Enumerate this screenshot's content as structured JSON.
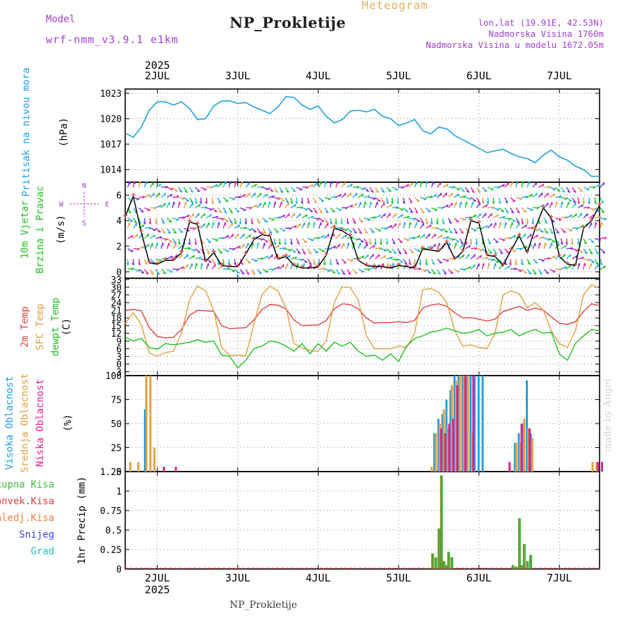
{
  "header": {
    "model_label": "Model",
    "model_name": "wrf-nmm_v3.9.1 e1km",
    "title": "NP_Prokletije",
    "meteogram_label": "Meteogram",
    "location_lines": [
      "lon,lat (19.91E, 42.53N)",
      "Nadmorska Visina 1760m",
      "Nadmorska Visina u modelu 1672.05m"
    ]
  },
  "footer": {
    "station_name": "NP_Prokletije",
    "credit": "made by Angel"
  },
  "colors": {
    "pressure": "#20a0e0",
    "temp2m": "#e04040",
    "sfc_temp": "#e0a040",
    "dewpoint": "#20c020",
    "wind_speed": "#000000",
    "gust_marker": "#e04040",
    "high_cloud": "#20a0e0",
    "mid_cloud": "#e0a040",
    "low_cloud": "#e02090",
    "total_rain": "#40c040",
    "conv_rain": "#e04040",
    "freezing_rain": "#f08040",
    "snow": "#4040e0",
    "hail": "#20c0c0",
    "purple_text": "#a040d0"
  },
  "chart_data": [
    {
      "type": "line",
      "id": "pressure",
      "ylabel": [
        "Pritisak na nivou mora",
        "(hPa)"
      ],
      "ylim": [
        1012.5,
        1023.5
      ],
      "yticks": [
        1014,
        1017,
        1020,
        1023
      ],
      "x_start_day": 1.6,
      "x_end_day": 7.5,
      "day_ticks": [
        {
          "day": 2,
          "label": "2JUL"
        },
        {
          "day": 3,
          "label": "3JUL"
        },
        {
          "day": 4,
          "label": "4JUL"
        },
        {
          "day": 5,
          "label": "5JUL"
        },
        {
          "day": 6,
          "label": "6JUL"
        },
        {
          "day": 7,
          "label": "7JUL"
        }
      ],
      "year_label": "2025",
      "series": [
        {
          "x": [
            1.6,
            1.7,
            1.8,
            1.9,
            2.0,
            2.1,
            2.2,
            2.3,
            2.4,
            2.5,
            2.6,
            2.7,
            2.8,
            2.9,
            3.0,
            3.1,
            3.2,
            3.3,
            3.4,
            3.5,
            3.6,
            3.7,
            3.8,
            3.9,
            4.0,
            4.1,
            4.2,
            4.3,
            4.4,
            4.5,
            4.6,
            4.7,
            4.8,
            4.9,
            5.0,
            5.1,
            5.2,
            5.3,
            5.4,
            5.5,
            5.6,
            5.7,
            5.8,
            5.9,
            6.0,
            6.1,
            6.2,
            6.3,
            6.4,
            6.5,
            6.6,
            6.7,
            6.8,
            6.9,
            7.0,
            7.1,
            7.2,
            7.3,
            7.4,
            7.5
          ],
          "values": [
            1018.3,
            1017.8,
            1019.0,
            1021.0,
            1022.0,
            1022.0,
            1021.6,
            1022.0,
            1021.2,
            1019.9,
            1020.0,
            1021.5,
            1022.1,
            1022.1,
            1021.8,
            1021.9,
            1021.4,
            1021.0,
            1020.6,
            1021.4,
            1022.6,
            1022.5,
            1021.6,
            1021.1,
            1021.5,
            1020.3,
            1019.5,
            1019.9,
            1020.9,
            1021.0,
            1020.8,
            1021.1,
            1020.3,
            1020.0,
            1019.2,
            1019.5,
            1019.9,
            1018.6,
            1018.2,
            1019.0,
            1018.8,
            1018.0,
            1017.5,
            1017.0,
            1016.5,
            1016.0,
            1016.2,
            1016.4,
            1015.9,
            1015.5,
            1015.3,
            1014.8,
            1015.7,
            1016.3,
            1015.5,
            1015.1,
            1014.4,
            1014.0,
            1013.2,
            1013.2
          ]
        }
      ]
    },
    {
      "type": "line",
      "id": "wind",
      "ylabel": [
        "10m Vjetar",
        "Brzina i Pravac",
        "(m/s)"
      ],
      "compass": [
        "N",
        "W",
        "E",
        "S"
      ],
      "ylim": [
        -0.5,
        7.0
      ],
      "yticks": [
        0,
        2,
        4,
        6
      ],
      "series": [
        {
          "name": "wind speed",
          "x": [
            1.6,
            1.7,
            1.8,
            1.9,
            2.0,
            2.1,
            2.2,
            2.3,
            2.4,
            2.5,
            2.6,
            2.7,
            2.8,
            2.9,
            3.0,
            3.1,
            3.2,
            3.3,
            3.4,
            3.5,
            3.6,
            3.7,
            3.8,
            3.9,
            4.0,
            4.1,
            4.2,
            4.3,
            4.4,
            4.5,
            4.6,
            4.7,
            4.8,
            4.9,
            5.0,
            5.1,
            5.2,
            5.3,
            5.4,
            5.5,
            5.6,
            5.7,
            5.8,
            5.9,
            6.0,
            6.1,
            6.2,
            6.3,
            6.4,
            6.5,
            6.6,
            6.7,
            6.8,
            6.9,
            7.0,
            7.1,
            7.2,
            7.3,
            7.4,
            7.5
          ],
          "values": [
            4.3,
            5.9,
            3.1,
            0.7,
            0.6,
            0.9,
            0.9,
            1.5,
            3.9,
            3.7,
            0.8,
            1.5,
            0.5,
            0.4,
            0.4,
            1.4,
            2.5,
            2.9,
            2.8,
            1.0,
            1.2,
            0.5,
            0.3,
            0.3,
            0.4,
            1.3,
            3.4,
            3.2,
            2.8,
            0.9,
            0.5,
            0.4,
            0.4,
            0.3,
            0.5,
            0.4,
            0.3,
            1.8,
            1.7,
            1.6,
            2.3,
            1.0,
            1.6,
            4.0,
            3.8,
            1.3,
            1.2,
            0.5,
            1.7,
            2.8,
            1.5,
            3.4,
            5.0,
            4.2,
            1.2,
            0.6,
            0.5,
            3.4,
            4.0,
            5.2
          ]
        }
      ],
      "arrow_rows": [
        0.2,
        1.0,
        1.8,
        2.6,
        3.4,
        4.2,
        5.0,
        5.8,
        6.6
      ]
    },
    {
      "type": "line",
      "id": "temperature",
      "ylabel": [
        "2m Temp",
        "SFC Temp",
        "dewpt Temp",
        "(C)"
      ],
      "ylim": [
        -4.5,
        33.5
      ],
      "yticks": [
        -3,
        0,
        3,
        6,
        9,
        12,
        15,
        18,
        21,
        24,
        27,
        30,
        33
      ],
      "series": [
        {
          "name": "2m Temp",
          "x": [
            1.6,
            1.7,
            1.8,
            1.9,
            2.0,
            2.1,
            2.2,
            2.3,
            2.4,
            2.5,
            2.6,
            2.7,
            2.8,
            2.9,
            3.0,
            3.1,
            3.2,
            3.3,
            3.4,
            3.5,
            3.6,
            3.7,
            3.8,
            3.9,
            4.0,
            4.1,
            4.2,
            4.3,
            4.4,
            4.5,
            4.6,
            4.7,
            4.8,
            4.9,
            5.0,
            5.1,
            5.2,
            5.3,
            5.4,
            5.5,
            5.6,
            5.7,
            5.8,
            5.9,
            6.0,
            6.1,
            6.2,
            6.3,
            6.4,
            6.5,
            6.6,
            6.7,
            6.8,
            6.9,
            7.0,
            7.1,
            7.2,
            7.3,
            7.4,
            7.5
          ],
          "values": [
            20.8,
            21.4,
            20.8,
            14.2,
            10.8,
            10.2,
            10.4,
            13.5,
            19.0,
            21.0,
            20.8,
            20.6,
            15.0,
            13.8,
            14.0,
            14.2,
            17.2,
            21.2,
            23.2,
            23.0,
            21.5,
            17.2,
            15.0,
            15.2,
            15.2,
            17.0,
            21.5,
            23.5,
            23.2,
            21.5,
            18.0,
            16.0,
            16.2,
            16.2,
            16.5,
            16.2,
            17.0,
            21.8,
            23.0,
            23.5,
            22.5,
            20.0,
            18.0,
            18.2,
            17.5,
            16.8,
            17.5,
            20.5,
            21.5,
            22.5,
            21.0,
            21.8,
            21.0,
            18.5,
            16.0,
            15.5,
            16.5,
            20.5,
            23.5,
            22.8
          ]
        },
        {
          "name": "SFC Temp",
          "x": [
            1.6,
            1.7,
            1.8,
            1.9,
            2.0,
            2.1,
            2.2,
            2.3,
            2.4,
            2.5,
            2.6,
            2.7,
            2.8,
            2.9,
            3.0,
            3.1,
            3.2,
            3.3,
            3.4,
            3.5,
            3.6,
            3.7,
            3.8,
            3.9,
            4.0,
            4.1,
            4.2,
            4.3,
            4.4,
            4.5,
            4.6,
            4.7,
            4.8,
            4.9,
            5.0,
            5.1,
            5.2,
            5.3,
            5.4,
            5.5,
            5.6,
            5.7,
            5.8,
            5.9,
            6.0,
            6.1,
            6.2,
            6.3,
            6.4,
            6.5,
            6.6,
            6.7,
            6.8,
            6.9,
            7.0,
            7.1,
            7.2,
            7.3,
            7.4,
            7.5
          ],
          "values": [
            15.8,
            20.0,
            15.5,
            4.3,
            3.0,
            4.5,
            5.0,
            12.0,
            25.0,
            30.5,
            28.5,
            21.0,
            6.5,
            3.3,
            3.5,
            3.2,
            15.5,
            27.0,
            30.5,
            28.5,
            22.0,
            8.0,
            6.3,
            5.2,
            5.0,
            9.0,
            24.0,
            30.2,
            29.8,
            25.0,
            11.0,
            6.0,
            6.0,
            6.0,
            7.0,
            6.5,
            12.0,
            29.0,
            29.5,
            28.0,
            24.0,
            13.0,
            7.0,
            7.5,
            6.5,
            6.0,
            12.0,
            27.0,
            28.5,
            27.5,
            22.0,
            24.0,
            21.0,
            13.0,
            8.0,
            6.5,
            13.0,
            27.0,
            31.0,
            29.5
          ]
        },
        {
          "name": "dewpt Temp",
          "x": [
            1.6,
            1.7,
            1.8,
            1.9,
            2.0,
            2.1,
            2.2,
            2.3,
            2.4,
            2.5,
            2.6,
            2.7,
            2.8,
            2.9,
            3.0,
            3.1,
            3.2,
            3.3,
            3.4,
            3.5,
            3.6,
            3.7,
            3.8,
            3.9,
            4.0,
            4.1,
            4.2,
            4.3,
            4.4,
            4.5,
            4.6,
            4.7,
            4.8,
            4.9,
            5.0,
            5.1,
            5.2,
            5.3,
            5.4,
            5.5,
            5.6,
            5.7,
            5.8,
            5.9,
            6.0,
            6.1,
            6.2,
            6.3,
            6.4,
            6.5,
            6.6,
            6.7,
            6.8,
            6.9,
            7.0,
            7.1,
            7.2,
            7.3,
            7.4,
            7.5
          ],
          "values": [
            10.5,
            9.0,
            10.0,
            6.5,
            5.8,
            8.0,
            7.5,
            8.0,
            8.5,
            9.5,
            8.5,
            9.0,
            3.5,
            3.0,
            -1.5,
            1.5,
            6.0,
            7.0,
            9.0,
            8.5,
            7.0,
            5.0,
            8.0,
            4.0,
            8.0,
            5.0,
            8.5,
            7.0,
            8.5,
            5.0,
            3.0,
            3.5,
            1.5,
            4.0,
            1.0,
            7.0,
            10.0,
            11.0,
            12.5,
            13.0,
            14.0,
            13.0,
            12.0,
            12.5,
            13.5,
            11.0,
            12.0,
            12.5,
            13.5,
            11.0,
            12.5,
            13.5,
            12.0,
            12.5,
            4.0,
            1.5,
            8.0,
            11.0,
            13.5,
            13.0
          ]
        }
      ]
    },
    {
      "type": "bar",
      "id": "cloud",
      "ylabel": [
        "Visoka Oblacnost",
        "Srednja Oblacnost",
        "Niska Oblacnost",
        "(%)"
      ],
      "ylim": [
        0,
        100
      ],
      "yticks": [
        0,
        25,
        50,
        75,
        100
      ],
      "series": [
        {
          "name": "Visoka Oblacnost",
          "x": [
            1.85,
            5.45,
            5.5,
            5.55,
            5.6,
            5.65,
            5.7,
            5.75,
            5.8,
            5.85,
            5.9,
            5.95,
            6.0,
            6.05,
            6.45,
            6.5,
            6.55,
            6.6,
            6.65
          ],
          "values": [
            65,
            40,
            55,
            60,
            75,
            85,
            100,
            100,
            100,
            100,
            100,
            100,
            100,
            100,
            30,
            40,
            50,
            95,
            40
          ]
        },
        {
          "name": "Srednja Oblacnost",
          "x": [
            1.65,
            1.75,
            1.85,
            1.9,
            1.95,
            5.4,
            5.45,
            5.5,
            5.55,
            5.6,
            5.65,
            5.7,
            5.75,
            5.8,
            5.85,
            5.9,
            6.45,
            6.5,
            6.55,
            6.6,
            6.65,
            7.4,
            7.45
          ],
          "values": [
            10,
            10,
            100,
            100,
            25,
            5,
            40,
            50,
            65,
            45,
            90,
            95,
            100,
            100,
            100,
            40,
            30,
            30,
            55,
            45,
            35,
            10,
            10
          ]
        },
        {
          "name": "Niska Oblacnost",
          "x": [
            2.05,
            2.2,
            5.5,
            5.55,
            5.6,
            5.65,
            5.7,
            5.8,
            5.9,
            6.35,
            6.5,
            6.6,
            7.45,
            7.5
          ],
          "values": [
            5,
            5,
            45,
            40,
            50,
            55,
            90,
            100,
            100,
            10,
            50,
            45,
            10,
            10
          ]
        }
      ]
    },
    {
      "type": "bar",
      "id": "precip",
      "ylabel": [
        "1hr Precip (mm)"
      ],
      "legend": [
        "Ukupna Kisa",
        "Konvek.Kisa",
        "Zaledj.Kisa",
        "Snijeg",
        "Grad"
      ],
      "ylim": [
        0,
        1.25
      ],
      "yticks": [
        0,
        0.25,
        0.5,
        0.75,
        1,
        1.25
      ],
      "series": [
        {
          "name": "Ukupna Kisa",
          "x": [
            5.42,
            5.46,
            5.5,
            5.53,
            5.56,
            5.59,
            5.62,
            5.66,
            6.42,
            6.46,
            6.5,
            6.53,
            6.56,
            6.6,
            6.64
          ],
          "values": [
            0.2,
            0.15,
            0.52,
            1.2,
            0.1,
            0.05,
            0.22,
            0.15,
            0.05,
            0.03,
            0.65,
            0.05,
            0.32,
            0.1,
            0.18
          ]
        }
      ]
    }
  ]
}
